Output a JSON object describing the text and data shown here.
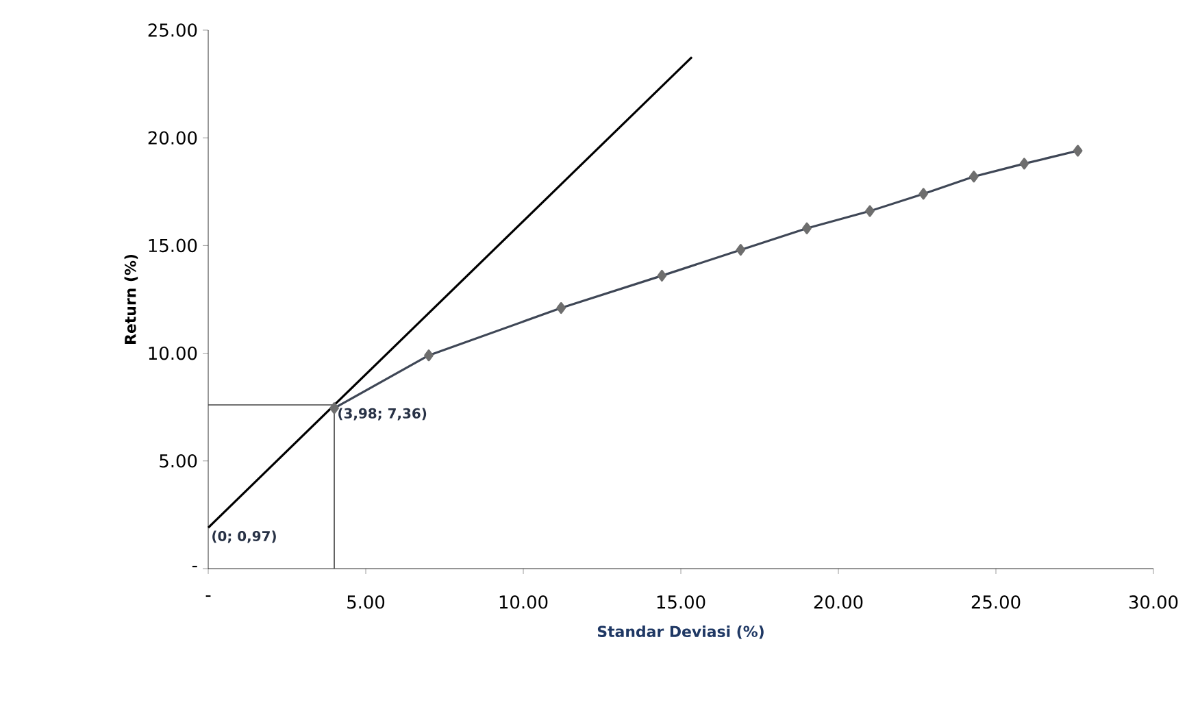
{
  "chart_data": {
    "type": "line",
    "xlabel": "Standar Deviasi (%)",
    "ylabel": "Return (%)",
    "xlim": [
      0,
      30
    ],
    "ylim": [
      0,
      25
    ],
    "xticks": [
      {
        "value": 0,
        "label": "-"
      },
      {
        "value": 5,
        "label": "5.00"
      },
      {
        "value": 10,
        "label": "10.00"
      },
      {
        "value": 15,
        "label": "15.00"
      },
      {
        "value": 20,
        "label": "20.00"
      },
      {
        "value": 25,
        "label": "25.00"
      },
      {
        "value": 30,
        "label": "30.00"
      }
    ],
    "yticks": [
      {
        "value": 0,
        "label": "-"
      },
      {
        "value": 5,
        "label": "5.00"
      },
      {
        "value": 10,
        "label": "10.00"
      },
      {
        "value": 15,
        "label": "15.00"
      },
      {
        "value": 20,
        "label": "20.00"
      },
      {
        "value": 25,
        "label": "25.00"
      }
    ],
    "series": [
      {
        "color": "#000000",
        "marker": "none",
        "x": [
          0,
          15.35
        ],
        "values": [
          1.9,
          23.75
        ]
      },
      {
        "color": "#404040",
        "marker": "none",
        "x": [
          0,
          4.0,
          4.0
        ],
        "values": [
          7.6,
          7.6,
          0
        ]
      },
      {
        "color": "#3f4756",
        "marker": "diamond",
        "x": [
          4.0,
          7.0,
          11.2,
          14.4,
          16.9,
          19.0,
          21.0,
          22.7,
          24.3,
          25.9,
          27.6
        ],
        "values": [
          7.45,
          9.9,
          12.1,
          13.6,
          14.8,
          15.8,
          16.6,
          17.4,
          18.2,
          18.8,
          19.4
        ]
      }
    ],
    "annotations": [
      {
        "text": "(0; 0,97)",
        "x": 0,
        "y": 1.9
      },
      {
        "text": "(3,98; 7,36)",
        "x": 4.0,
        "y": 7.6
      }
    ]
  }
}
